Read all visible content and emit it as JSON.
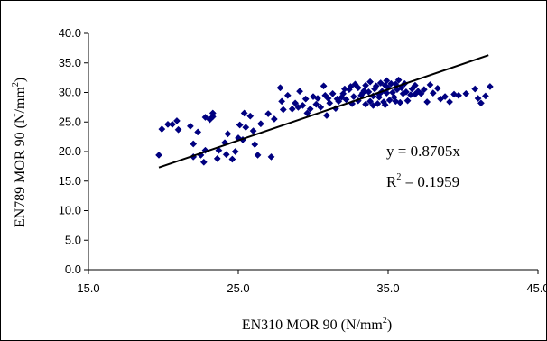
{
  "chart_data": {
    "type": "scatter",
    "xlabel": "EN310 MOR 90 (N/mm",
    "xlabel_sup": "2",
    "xlabel_end": ")",
    "ylabel": "EN789 MOR 90 (N/mm",
    "ylabel_sup": "2",
    "ylabel_end": ")",
    "xlim": [
      15,
      45
    ],
    "ylim": [
      0,
      40
    ],
    "x_ticks": [
      "15.0",
      "25.0",
      "35.0",
      "45.0"
    ],
    "y_ticks": [
      "0.0",
      "5.0",
      "10.0",
      "15.0",
      "20.0",
      "25.0",
      "30.0",
      "35.0",
      "40.0"
    ],
    "grid": false,
    "marker_color": "#000080",
    "trendline": {
      "color": "#000000",
      "x": [
        19.7,
        41.7
      ],
      "y": [
        17.3,
        36.3
      ]
    },
    "annotation_eq": "y = 0.8705x",
    "annotation_r_pre": "R",
    "annotation_r_sup": "2",
    "annotation_r_post": " = 0.1959",
    "points": [
      [
        19.7,
        19.4
      ],
      [
        19.9,
        23.8
      ],
      [
        20.3,
        24.6
      ],
      [
        20.6,
        24.6
      ],
      [
        20.9,
        25.2
      ],
      [
        21.0,
        23.7
      ],
      [
        21.8,
        24.3
      ],
      [
        22.0,
        21.3
      ],
      [
        22.0,
        19.1
      ],
      [
        22.3,
        23.3
      ],
      [
        22.5,
        19.4
      ],
      [
        22.7,
        18.2
      ],
      [
        22.8,
        20.2
      ],
      [
        22.8,
        25.8
      ],
      [
        23.1,
        25.4
      ],
      [
        23.3,
        26.5
      ],
      [
        23.3,
        25.9
      ],
      [
        23.6,
        18.8
      ],
      [
        23.7,
        20.2
      ],
      [
        24.1,
        21.5
      ],
      [
        24.2,
        19.5
      ],
      [
        24.3,
        23.0
      ],
      [
        24.6,
        18.7
      ],
      [
        24.8,
        20.0
      ],
      [
        25.0,
        22.3
      ],
      [
        25.1,
        24.5
      ],
      [
        25.3,
        22.0
      ],
      [
        25.4,
        26.5
      ],
      [
        25.5,
        24.1
      ],
      [
        25.8,
        26.0
      ],
      [
        26.0,
        23.5
      ],
      [
        26.1,
        21.2
      ],
      [
        26.3,
        19.4
      ],
      [
        26.5,
        24.7
      ],
      [
        27.0,
        26.4
      ],
      [
        27.2,
        19.1
      ],
      [
        27.4,
        25.5
      ],
      [
        27.8,
        30.8
      ],
      [
        27.9,
        28.5
      ],
      [
        28.0,
        27.1
      ],
      [
        28.3,
        29.5
      ],
      [
        28.6,
        27.2
      ],
      [
        28.8,
        28.2
      ],
      [
        29.0,
        27.5
      ],
      [
        29.1,
        30.2
      ],
      [
        29.3,
        27.8
      ],
      [
        29.5,
        28.9
      ],
      [
        29.8,
        27.2
      ],
      [
        30.0,
        29.3
      ],
      [
        30.2,
        28.0
      ],
      [
        30.3,
        29.0
      ],
      [
        30.5,
        27.5
      ],
      [
        30.7,
        31.1
      ],
      [
        30.9,
        26.1
      ],
      [
        31.0,
        29.0
      ],
      [
        31.1,
        28.2
      ],
      [
        31.3,
        29.8
      ],
      [
        31.5,
        27.3
      ],
      [
        31.7,
        28.5
      ],
      [
        31.9,
        29.2
      ],
      [
        32.0,
        29.8
      ],
      [
        32.2,
        28.8
      ],
      [
        32.4,
        30.5
      ],
      [
        32.5,
        31.0
      ],
      [
        32.7,
        29.3
      ],
      [
        32.8,
        31.4
      ],
      [
        33.0,
        30.8
      ],
      [
        33.2,
        29.5
      ],
      [
        33.4,
        30.3
      ],
      [
        33.5,
        31.2
      ],
      [
        33.7,
        30.1
      ],
      [
        33.8,
        28.5
      ],
      [
        34.0,
        29.4
      ],
      [
        34.1,
        30.6
      ],
      [
        34.2,
        31.1
      ],
      [
        34.3,
        28.1
      ],
      [
        34.4,
        29.7
      ],
      [
        34.5,
        31.6
      ],
      [
        34.6,
        30.2
      ],
      [
        34.7,
        28.4
      ],
      [
        34.8,
        31.2
      ],
      [
        34.9,
        29.9
      ],
      [
        35.0,
        30.8
      ],
      [
        35.1,
        28.7
      ],
      [
        35.2,
        31.5
      ],
      [
        35.3,
        30.0
      ],
      [
        35.4,
        29.2
      ],
      [
        35.5,
        31.4
      ],
      [
        35.6,
        30.5
      ],
      [
        35.8,
        28.3
      ],
      [
        35.9,
        30.8
      ],
      [
        36.0,
        29.8
      ],
      [
        36.1,
        31.5
      ],
      [
        36.2,
        30.1
      ],
      [
        36.3,
        28.6
      ],
      [
        36.5,
        29.6
      ],
      [
        36.6,
        30.6
      ],
      [
        36.8,
        29.7
      ],
      [
        37.0,
        30.2
      ],
      [
        37.2,
        29.8
      ],
      [
        37.4,
        30.5
      ],
      [
        37.6,
        28.4
      ],
      [
        37.8,
        31.3
      ],
      [
        38.0,
        29.9
      ],
      [
        38.3,
        30.7
      ],
      [
        38.5,
        28.9
      ],
      [
        38.8,
        29.3
      ],
      [
        39.1,
        28.4
      ],
      [
        39.4,
        29.7
      ],
      [
        39.7,
        29.5
      ],
      [
        40.2,
        29.8
      ],
      [
        40.8,
        30.6
      ],
      [
        41.0,
        29.0
      ],
      [
        41.2,
        28.2
      ],
      [
        41.5,
        29.4
      ],
      [
        41.8,
        31.0
      ],
      [
        33.5,
        28.0
      ],
      [
        34.0,
        27.8
      ],
      [
        34.8,
        27.9
      ],
      [
        35.5,
        28.5
      ],
      [
        33.0,
        28.6
      ],
      [
        32.6,
        28.1
      ],
      [
        30.8,
        29.5
      ],
      [
        29.6,
        26.5
      ],
      [
        31.6,
        28.9
      ],
      [
        36.8,
        31.2
      ],
      [
        33.8,
        31.8
      ],
      [
        34.9,
        32.0
      ],
      [
        35.7,
        32.1
      ],
      [
        32.1,
        30.6
      ],
      [
        33.3,
        29.9
      ],
      [
        34.4,
        29.2
      ]
    ]
  }
}
